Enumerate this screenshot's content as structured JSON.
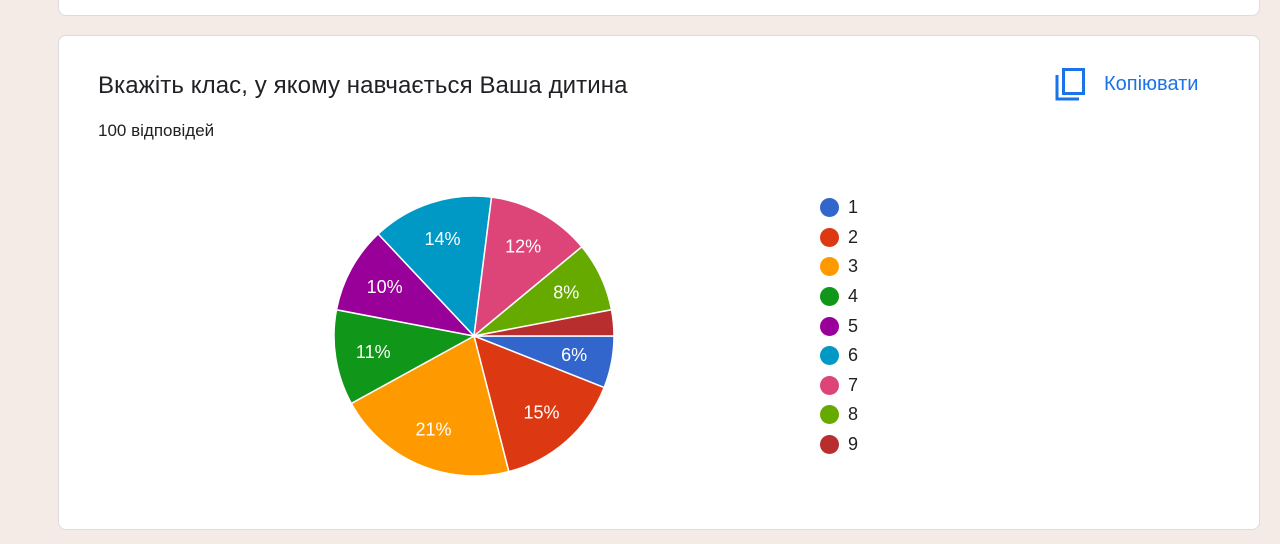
{
  "question": {
    "title": "Вкажіть клас, у якому навчається Ваша дитина",
    "responses": "100 відповідей"
  },
  "toolbar": {
    "copy_label": "Копіювати",
    "copy_icon": "copy-icon"
  },
  "chart_data": {
    "type": "pie",
    "title": "",
    "categories": [
      "1",
      "2",
      "3",
      "4",
      "5",
      "6",
      "7",
      "8",
      "9"
    ],
    "values": [
      6,
      15,
      21,
      11,
      10,
      14,
      12,
      8,
      3
    ],
    "labels": [
      "6%",
      "15%",
      "21%",
      "11%",
      "10%",
      "14%",
      "12%",
      "8%",
      ""
    ],
    "colors": [
      "#3366cc",
      "#dc3912",
      "#ff9900",
      "#109618",
      "#990099",
      "#0099c6",
      "#dd4477",
      "#66aa00",
      "#b82e2e"
    ],
    "legend_position": "right",
    "start": "3 o'clock",
    "direction": "clockwise"
  }
}
